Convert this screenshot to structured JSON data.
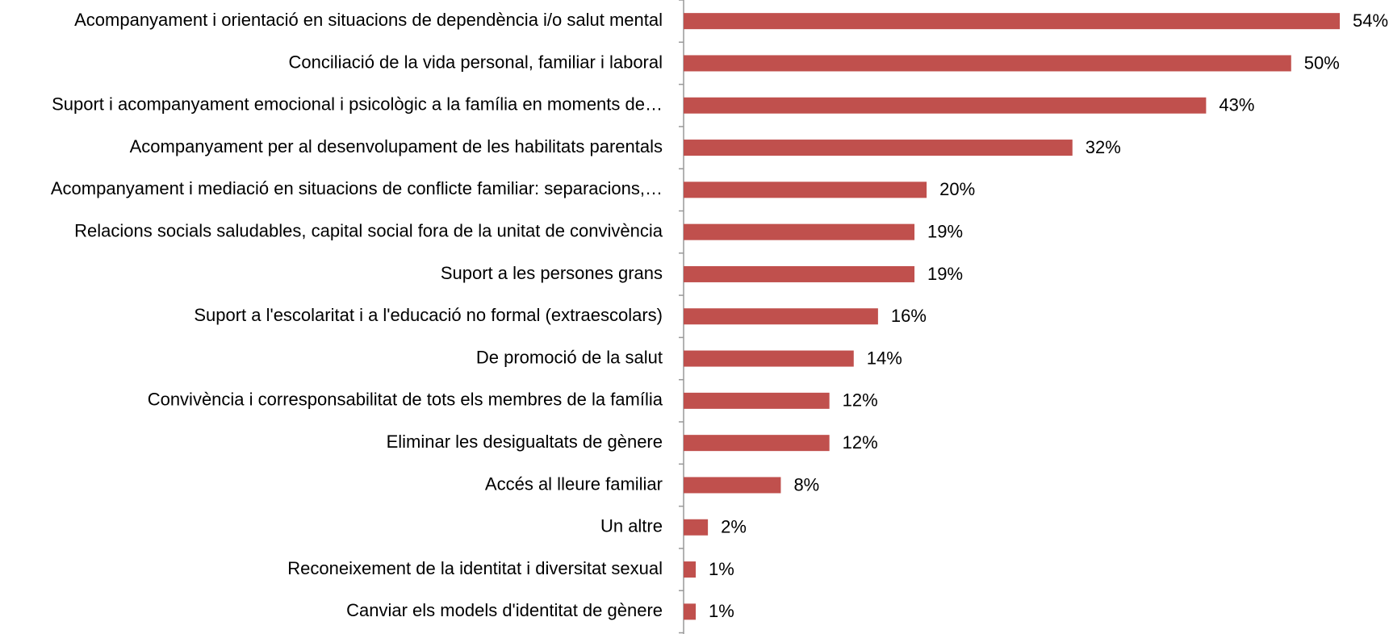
{
  "chart_data": {
    "type": "bar",
    "orientation": "horizontal",
    "color": "#c0504d",
    "categories": [
      "Acompanyament i orientació en situacions de dependència i/o salut mental",
      "Conciliació de la vida personal, familiar i laboral",
      "Suport i acompanyament emocional i psicològic a la família en moments de…",
      "Acompanyament per al desenvolupament de les habilitats parentals",
      "Acompanyament i mediació en situacions de conflicte familiar: separacions,…",
      "Relacions socials saludables, capital social fora de la unitat de convivència",
      "Suport a les persones grans",
      "Suport a l'escolaritat i a l'educació no formal (extraescolars)",
      "De promoció de la salut",
      "Convivència i corresponsabilitat de tots els membres de la família",
      "Eliminar les desigualtats de gènere",
      "Accés al lleure familiar",
      "Un altre",
      "Reconeixement de la identitat i diversitat sexual",
      "Canviar els models d'identitat de gènere"
    ],
    "values": [
      54,
      50,
      43,
      32,
      20,
      19,
      19,
      16,
      14,
      12,
      12,
      8,
      2,
      1,
      1
    ],
    "value_labels": [
      "54%",
      "50%",
      "43%",
      "32%",
      "20%",
      "19%",
      "19%",
      "16%",
      "14%",
      "12%",
      "12%",
      "8%",
      "2%",
      "1%",
      "1%"
    ]
  }
}
